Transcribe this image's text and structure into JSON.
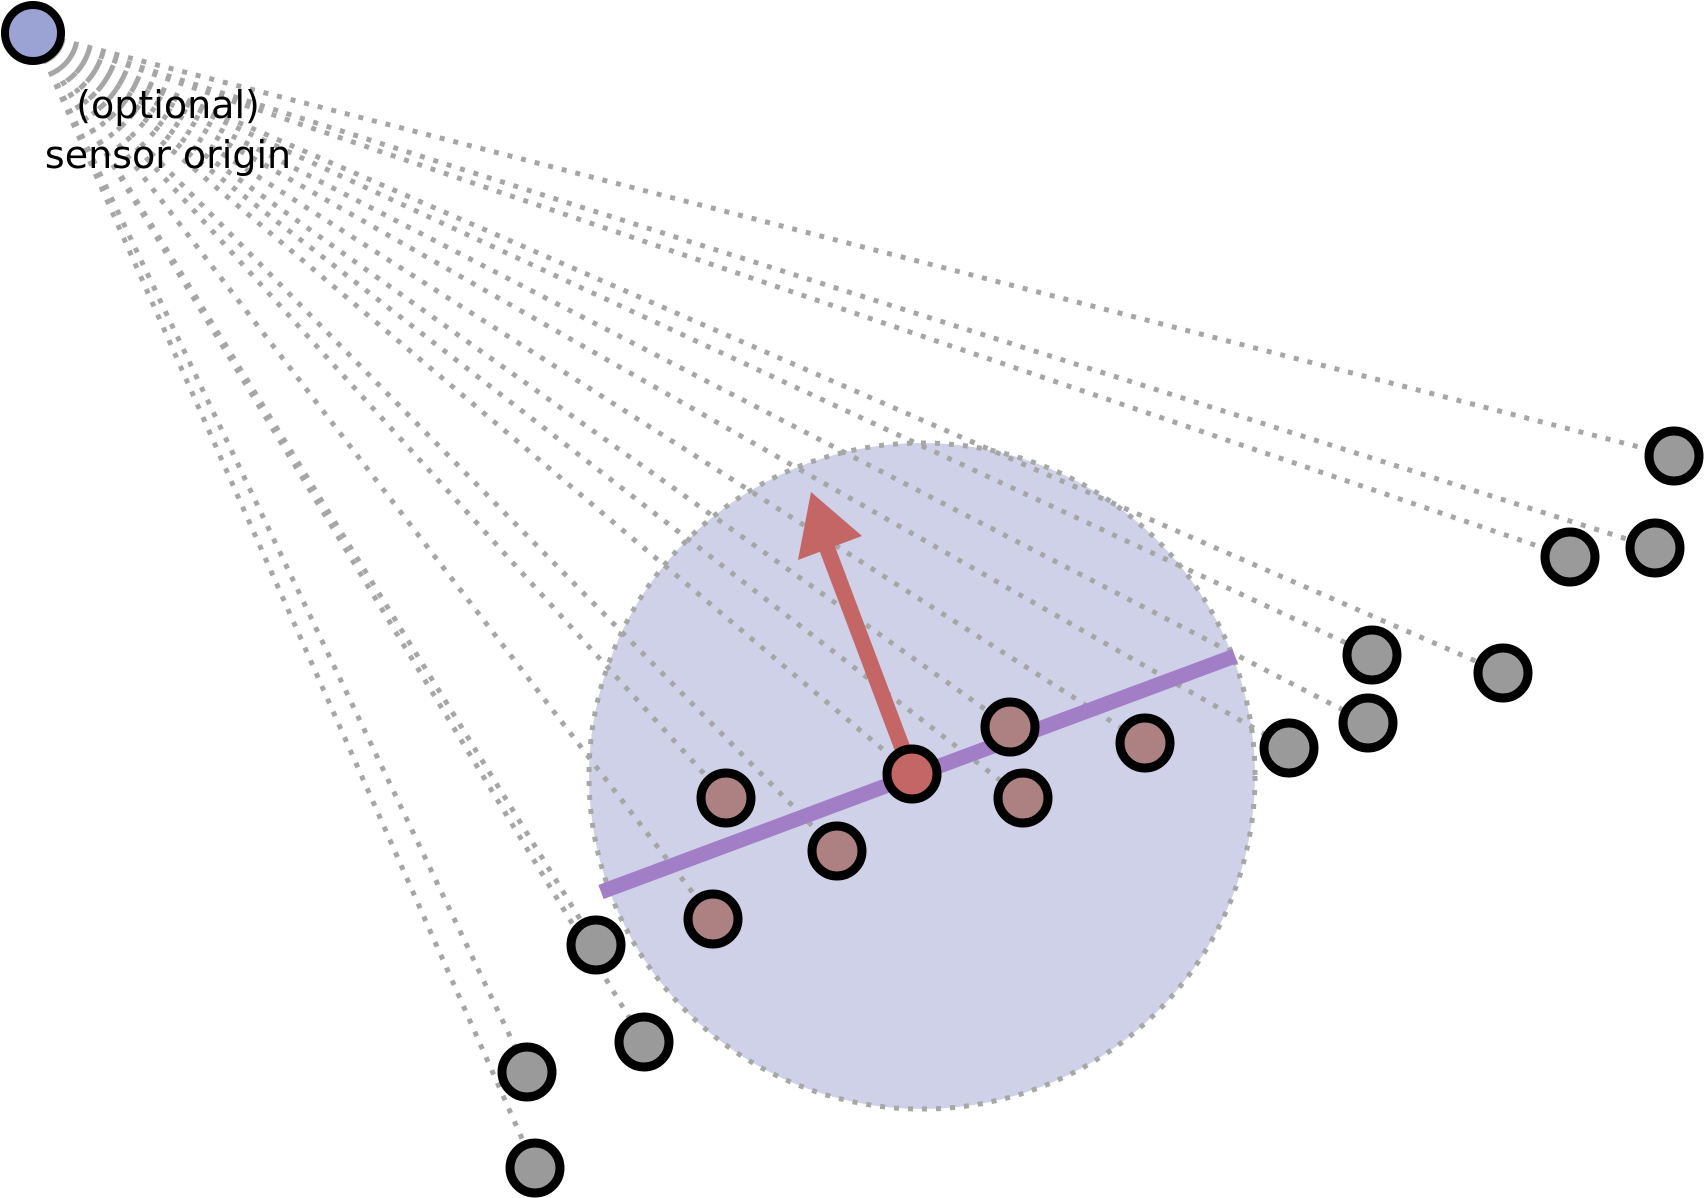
{
  "diagram": {
    "sensor_label_line1": "(optional)",
    "sensor_label_line2": "sensor origin"
  },
  "colors": {
    "sensor_fill": "#9aa3d4",
    "neighborhood_fill": "#cfd1e8",
    "neighborhood_border": "#a7a7a7",
    "neighbor_point_fill": "#ad8181",
    "query_point_fill": "#c56666",
    "other_point_fill": "#9a9a9a",
    "point_stroke": "#000000",
    "normal_arrow": "#c56666",
    "tangent_line": "#a27ec6",
    "ray_line": "#a6a6a6"
  }
}
